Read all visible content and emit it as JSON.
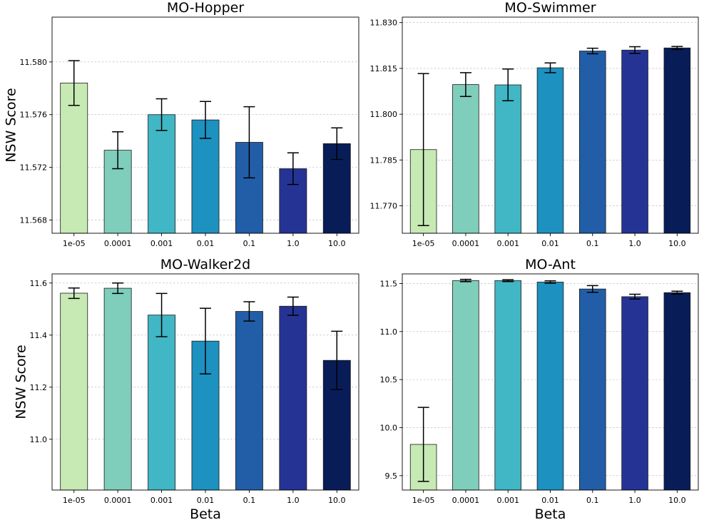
{
  "chart_data": [
    {
      "type": "bar",
      "title": "MO-Hopper",
      "xlabel": "",
      "ylabel": "NSW Score",
      "categories": [
        "1e-05",
        "0.0001",
        "0.001",
        "0.01",
        "0.1",
        "1.0",
        "10.0"
      ],
      "values": [
        11.5784,
        11.5733,
        11.576,
        11.5756,
        11.5739,
        11.5719,
        11.5738
      ],
      "errors": [
        0.0017,
        0.0014,
        0.0012,
        0.0014,
        0.0027,
        0.0012,
        0.0012
      ],
      "ylim": [
        11.567,
        11.5834
      ],
      "yticks": [
        11.568,
        11.572,
        11.576,
        11.58
      ],
      "ytick_labels": [
        "11.568",
        "11.572",
        "11.576",
        "11.580"
      ],
      "grid": true
    },
    {
      "type": "bar",
      "title": "MO-Swimmer",
      "xlabel": "",
      "ylabel": "",
      "categories": [
        "1e-05",
        "0.0001",
        "0.001",
        "0.01",
        "0.1",
        "1.0",
        "10.0"
      ],
      "values": [
        11.7884,
        11.8097,
        11.8096,
        11.8152,
        11.8207,
        11.821,
        11.8217
      ],
      "errors": [
        0.0249,
        0.0039,
        0.0052,
        0.0016,
        0.0009,
        0.0011,
        0.0005
      ],
      "ylim": [
        11.761,
        11.8318
      ],
      "yticks": [
        11.77,
        11.785,
        11.8,
        11.815,
        11.83
      ],
      "ytick_labels": [
        "11.770",
        "11.785",
        "11.800",
        "11.815",
        "11.830"
      ],
      "grid": true
    },
    {
      "type": "bar",
      "title": "MO-Walker2d",
      "xlabel": "Beta",
      "ylabel": "NSW Score",
      "categories": [
        "1e-05",
        "0.0001",
        "0.001",
        "0.01",
        "0.1",
        "1.0",
        "10.0"
      ],
      "values": [
        11.561,
        11.58,
        11.477,
        11.377,
        11.491,
        11.511,
        11.303
      ],
      "errors": [
        0.02,
        0.02,
        0.083,
        0.126,
        0.037,
        0.035,
        0.112
      ],
      "ylim": [
        10.805,
        11.635
      ],
      "yticks": [
        11.0,
        11.2,
        11.4,
        11.6
      ],
      "ytick_labels": [
        "11.0",
        "11.2",
        "11.4",
        "11.6"
      ],
      "grid": true
    },
    {
      "type": "bar",
      "title": "MO-Ant",
      "xlabel": "Beta",
      "ylabel": "",
      "categories": [
        "1e-05",
        "0.0001",
        "0.001",
        "0.01",
        "0.1",
        "1.0",
        "10.0"
      ],
      "values": [
        9.825,
        11.531,
        11.53,
        11.515,
        11.443,
        11.363,
        11.405
      ],
      "errors": [
        0.385,
        0.012,
        0.01,
        0.013,
        0.035,
        0.025,
        0.015
      ],
      "ylim": [
        9.35,
        11.6
      ],
      "yticks": [
        9.5,
        10.0,
        10.5,
        11.0,
        11.5
      ],
      "ytick_labels": [
        "9.5",
        "10.0",
        "10.5",
        "11.0",
        "11.5"
      ],
      "grid": true
    }
  ],
  "bar_colors": [
    "#c7e9b4",
    "#7fcdbb",
    "#41b6c4",
    "#1d91c0",
    "#225ea8",
    "#253494",
    "#081d58"
  ]
}
